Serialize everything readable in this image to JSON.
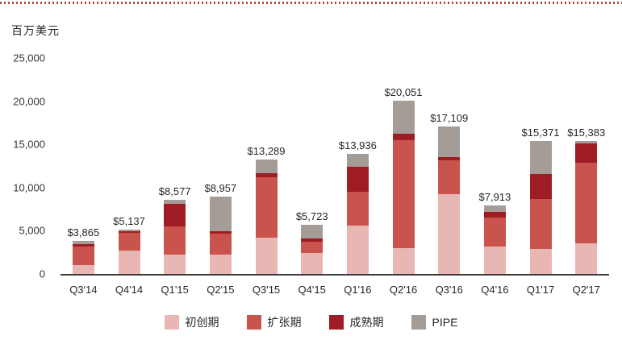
{
  "page": {
    "unit_label": "百万美元",
    "accent_dotted_line_color": "#b9453c"
  },
  "chart_data": {
    "type": "bar",
    "stacked": true,
    "title": "",
    "ylabel": "百万美元",
    "xlabel": "",
    "ylim": [
      0,
      25000
    ],
    "yticks": [
      0,
      5000,
      10000,
      15000,
      20000,
      25000
    ],
    "ytick_labels": [
      "0",
      "5,000",
      "10,000",
      "15,000",
      "20,000",
      "25,000"
    ],
    "grid": false,
    "legend_position": "bottom",
    "categories": [
      "Q3'14",
      "Q4'14",
      "Q1'15",
      "Q2'15",
      "Q3'15",
      "Q4'15",
      "Q1'16",
      "Q2'16",
      "Q3'16",
      "Q4'16",
      "Q1'17",
      "Q2'17"
    ],
    "series": [
      {
        "name": "初创期",
        "color": "#e9b7b3",
        "values": [
          1000,
          2700,
          2200,
          2200,
          4200,
          2400,
          5600,
          3000,
          9200,
          3200,
          2900,
          3500
        ]
      },
      {
        "name": "扩张期",
        "color": "#c9544e",
        "values": [
          2200,
          2100,
          3300,
          2500,
          7000,
          1300,
          3900,
          12500,
          4000,
          3300,
          5800,
          9400
        ]
      },
      {
        "name": "成熟期",
        "color": "#9f1c24",
        "values": [
          300,
          150,
          2600,
          250,
          500,
          400,
          2900,
          700,
          300,
          700,
          2900,
          2200
        ]
      },
      {
        "name": "PIPE",
        "color": "#a49c96",
        "values": [
          365,
          187,
          477,
          4007,
          1589,
          1623,
          1536,
          3851,
          3609,
          713,
          3771,
          283
        ]
      }
    ],
    "totals": [
      3865,
      5137,
      8577,
      8957,
      13289,
      5723,
      13936,
      20051,
      17109,
      7913,
      15371,
      15383
    ],
    "value_labels": [
      "$3,865",
      "$5,137",
      "$8,577",
      "$8,957",
      "$13,289",
      "$5,723",
      "$13,936",
      "$20,051",
      "$17,109",
      "$7,913",
      "$15,371",
      "$15,383"
    ]
  }
}
